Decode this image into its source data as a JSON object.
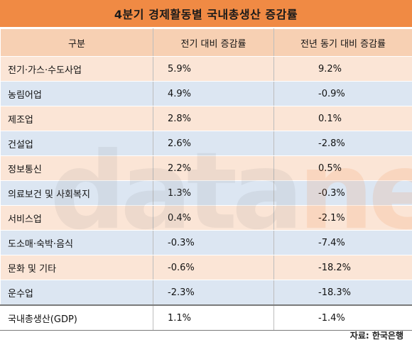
{
  "title": "4분기 경제활동별 국내총생산 증감률",
  "table": {
    "headers": [
      "구분",
      "전기 대비 증감률",
      "전년 동기 대비 증감률"
    ],
    "rows": [
      {
        "name": "전기·가스·수도사업",
        "qoq": "5.9%",
        "yoy": "9.2%"
      },
      {
        "name": "농림어업",
        "qoq": "4.9%",
        "yoy": "-0.9%"
      },
      {
        "name": "제조업",
        "qoq": "2.8%",
        "yoy": "0.1%"
      },
      {
        "name": "건설업",
        "qoq": "2.6%",
        "yoy": "-2.8%"
      },
      {
        "name": "정보통신",
        "qoq": "2.2%",
        "yoy": "0.5%"
      },
      {
        "name": "의료보건 및 사회복지",
        "qoq": "1.3%",
        "yoy": "-0.3%"
      },
      {
        "name": "서비스업",
        "qoq": "0.4%",
        "yoy": "-2.1%"
      },
      {
        "name": "도소매·숙박·음식",
        "qoq": "-0.3%",
        "yoy": "-7.4%"
      },
      {
        "name": "문화 및 기타",
        "qoq": "-0.6%",
        "yoy": "-18.2%"
      },
      {
        "name": "운수업",
        "qoq": "-2.3%",
        "yoy": "-18.3%"
      }
    ],
    "total": {
      "name": "국내총생산(GDP)",
      "qoq": "1.1%",
      "yoy": "-1.4%"
    }
  },
  "watermark": {
    "part1": "data",
    "part2": "news"
  },
  "source": "자료: 한국은행",
  "colors": {
    "title_bg": "#f08a44",
    "header_bg": "#f7d0b3",
    "row_peach": "#fbe5d6",
    "row_blue": "#dce6f2"
  }
}
